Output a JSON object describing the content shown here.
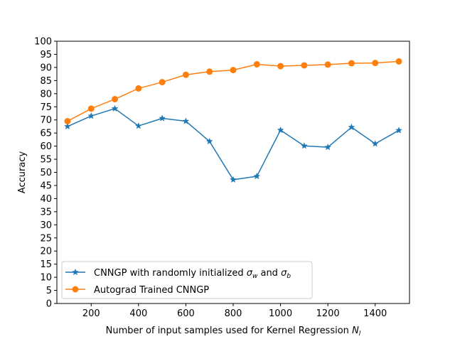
{
  "chart_data": {
    "type": "line",
    "title": "",
    "xlabel": "Number of input samples used for Kernel Regression",
    "xlabel_symbol": "N",
    "xlabel_symbol_sub": "l",
    "ylabel": "Accuracy",
    "xlim": [
      55,
      1545
    ],
    "ylim": [
      0,
      100
    ],
    "x_ticks": [
      200,
      400,
      600,
      800,
      1000,
      1200,
      1400
    ],
    "y_ticks": [
      0,
      5,
      10,
      15,
      20,
      25,
      30,
      35,
      40,
      45,
      50,
      55,
      60,
      65,
      70,
      75,
      80,
      85,
      90,
      95,
      100
    ],
    "grid": false,
    "legend_position": "lower-left",
    "x": [
      100,
      200,
      300,
      400,
      500,
      600,
      700,
      800,
      900,
      1000,
      1100,
      1200,
      1300,
      1400,
      1500
    ],
    "series": [
      {
        "name": "CNNGP with randomly initialized σ_w and σ_b",
        "legend_text_main": "CNNGP with randomly initialized ",
        "legend_sym1": "σ",
        "legend_sub1": "w",
        "legend_and": " and ",
        "legend_sym2": "σ",
        "legend_sub2": "b",
        "color": "#1f77b4",
        "marker": "star",
        "values": [
          67.5,
          71.5,
          74.3,
          67.7,
          70.6,
          69.5,
          61.8,
          47.2,
          48.5,
          66.1,
          60.1,
          59.6,
          67.2,
          60.9,
          66.0
        ]
      },
      {
        "name": "Autograd Trained CNNGP",
        "color": "#ff7f0e",
        "marker": "circle",
        "values": [
          69.5,
          74.3,
          77.9,
          82.0,
          84.4,
          87.2,
          88.4,
          89.0,
          91.2,
          90.5,
          90.8,
          91.1,
          91.6,
          91.7,
          92.3
        ]
      }
    ]
  }
}
